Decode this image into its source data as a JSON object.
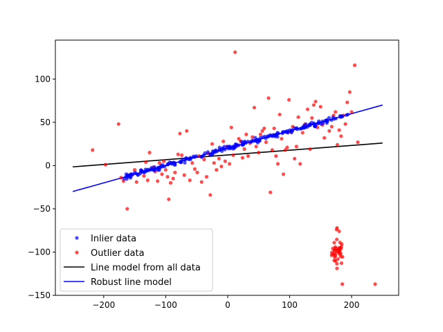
{
  "chart_data": {
    "type": "scatter",
    "title": "",
    "xlabel": "",
    "ylabel": "",
    "xlim": [
      -278,
      276
    ],
    "ylim": [
      -150,
      145
    ],
    "xticks": [
      -200,
      -100,
      0,
      100,
      200
    ],
    "yticks": [
      -150,
      -100,
      -50,
      0,
      50,
      100
    ],
    "tick_labels": {
      "x": [
        "−200",
        "−100",
        "0",
        "100",
        "200"
      ],
      "y": [
        "−150",
        "−100",
        "−50",
        "0",
        "50",
        "100"
      ]
    },
    "grid": false,
    "legend_position": "lower-left",
    "legend": [
      {
        "label": "Inlier data",
        "kind": "marker",
        "color": "#0000ff"
      },
      {
        "label": "Outlier data",
        "kind": "marker",
        "color": "#ff0000"
      },
      {
        "label": "Line model from all data",
        "kind": "line",
        "color": "#000000"
      },
      {
        "label": "Robust line model",
        "kind": "line",
        "color": "#0000ff"
      }
    ],
    "lines": [
      {
        "name": "Line model from all data",
        "color": "#000000",
        "x": [
          -250,
          250
        ],
        "y": [
          -1.5,
          26
        ]
      },
      {
        "name": "Robust line model",
        "color": "#0000ff",
        "x": [
          -250,
          250
        ],
        "y": [
          -30,
          70
        ]
      }
    ],
    "inliers": {
      "color": "#0000ff",
      "n": 230,
      "x_range": [
        -168,
        198
      ],
      "slope": 0.2,
      "intercept": 20,
      "spread": 1.4
    },
    "outliers": {
      "color": "#ff0000",
      "scattered": [
        [
          -218,
          18
        ],
        [
          -197,
          1
        ],
        [
          -176,
          48
        ],
        [
          -172,
          -14
        ],
        [
          -168,
          -18
        ],
        [
          -162,
          -50
        ],
        [
          -155,
          -10
        ],
        [
          -150,
          -5
        ],
        [
          -147,
          -19
        ],
        [
          -140,
          -6
        ],
        [
          -135,
          -12
        ],
        [
          -132,
          4
        ],
        [
          -129,
          -17
        ],
        [
          -126,
          15
        ],
        [
          -120,
          -2
        ],
        [
          -117,
          -7
        ],
        [
          -113,
          -18
        ],
        [
          -110,
          3
        ],
        [
          -106,
          -10
        ],
        [
          -103,
          5
        ],
        [
          -100,
          -5
        ],
        [
          -97,
          -13
        ],
        [
          -95,
          -39
        ],
        [
          -92,
          -20
        ],
        [
          -88,
          -15
        ],
        [
          -85,
          -8
        ],
        [
          -80,
          13
        ],
        [
          -77,
          37
        ],
        [
          -74,
          12
        ],
        [
          -70,
          -11
        ],
        [
          -66,
          40
        ],
        [
          -61,
          -17
        ],
        [
          -57,
          3
        ],
        [
          -53,
          -4
        ],
        [
          -49,
          -8
        ],
        [
          -46,
          11
        ],
        [
          -42,
          -19
        ],
        [
          -38,
          7
        ],
        [
          -34,
          -13
        ],
        [
          -31,
          14
        ],
        [
          -28,
          -34
        ],
        [
          -25,
          25
        ],
        [
          -22,
          3
        ],
        [
          -18,
          -5
        ],
        [
          -14,
          8
        ],
        [
          -10,
          -1
        ],
        [
          -7,
          28
        ],
        [
          -4,
          5
        ],
        [
          -1,
          22
        ],
        [
          3,
          2
        ],
        [
          6,
          44
        ],
        [
          9,
          12
        ],
        [
          12,
          131
        ],
        [
          15,
          23
        ],
        [
          18,
          31
        ],
        [
          21,
          28
        ],
        [
          24,
          9
        ],
        [
          27,
          19
        ],
        [
          30,
          36
        ],
        [
          33,
          11
        ],
        [
          36,
          26
        ],
        [
          40,
          33
        ],
        [
          43,
          67
        ],
        [
          46,
          22
        ],
        [
          50,
          15
        ],
        [
          53,
          36
        ],
        [
          56,
          40
        ],
        [
          59,
          43
        ],
        [
          62,
          27
        ],
        [
          66,
          78
        ],
        [
          69,
          -31
        ],
        [
          72,
          18
        ],
        [
          75,
          43
        ],
        [
          78,
          11
        ],
        [
          81,
          2
        ],
        [
          84,
          59
        ],
        [
          87,
          31
        ],
        [
          90,
          -10
        ],
        [
          93,
          18
        ],
        [
          96,
          21
        ],
        [
          99,
          76
        ],
        [
          102,
          39
        ],
        [
          105,
          45
        ],
        [
          108,
          8
        ],
        [
          111,
          22
        ],
        [
          114,
          56
        ],
        [
          117,
          2
        ],
        [
          121,
          38
        ],
        [
          125,
          48
        ],
        [
          129,
          65
        ],
        [
          133,
          19
        ],
        [
          136,
          55
        ],
        [
          139,
          70
        ],
        [
          142,
          74
        ],
        [
          145,
          44
        ],
        [
          150,
          68
        ],
        [
          153,
          47
        ],
        [
          156,
          32
        ],
        [
          160,
          52
        ],
        [
          164,
          40
        ],
        [
          168,
          45
        ],
        [
          171,
          58
        ],
        [
          174,
          62
        ],
        [
          177,
          24
        ],
        [
          180,
          41
        ],
        [
          183,
          34
        ],
        [
          187,
          58
        ],
        [
          190,
          48
        ],
        [
          193,
          73
        ],
        [
          197,
          85
        ],
        [
          200,
          62
        ],
        [
          205,
          116
        ],
        [
          210,
          27
        ],
        [
          238,
          -137
        ],
        [
          185,
          -137
        ]
      ],
      "cluster": {
        "cx": 178,
        "cy": -100,
        "n": 40,
        "sx": 5,
        "sy": 16
      }
    }
  }
}
